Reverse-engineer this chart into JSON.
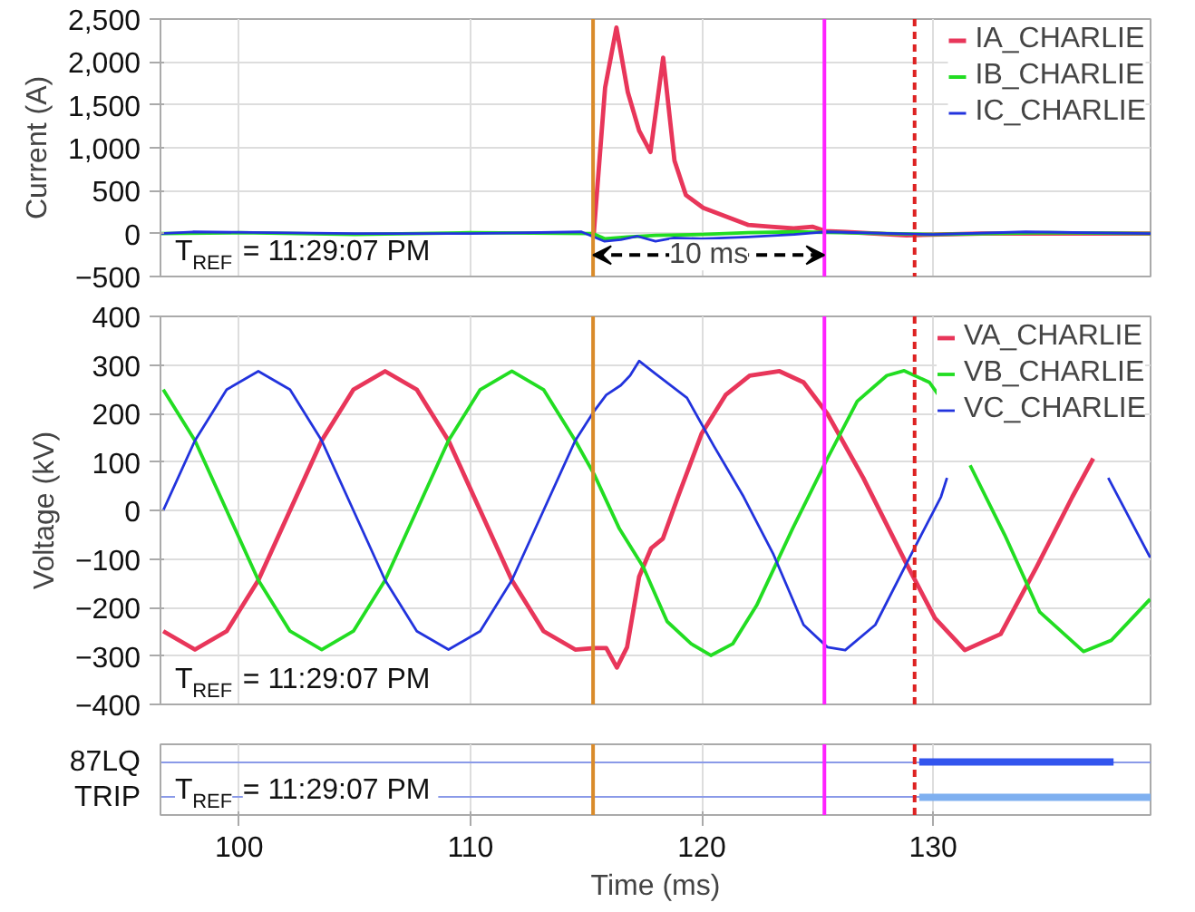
{
  "chart_data": [
    {
      "type": "line",
      "ylabel": "Current (A)",
      "xlim": [
        96.6,
        139.4
      ],
      "xticks": [
        100,
        110,
        120,
        130
      ],
      "ylim": [
        -500,
        2500
      ],
      "yticks": [
        {
          "value": -500,
          "label": "−500"
        },
        0,
        500,
        {
          "value": 1000,
          "label": "1,000"
        },
        {
          "value": 1500,
          "label": "1,500"
        },
        {
          "value": 2000,
          "label": "2,000"
        },
        {
          "value": 2500,
          "label": "2,500"
        }
      ],
      "tick_labels": "y",
      "grid": true,
      "legend": "top right",
      "series": [
        {
          "name": "IA_CHARLIE",
          "color": "#e8365a",
          "x": [
            115.33,
            115.82,
            116.31,
            116.8,
            117.29,
            117.78,
            118.33,
            118.82,
            119.31,
            120.06,
            121.04,
            122.02,
            123.0,
            123.97,
            124.78,
            125.33,
            126.25,
            128.85,
            132.11,
            139.4
          ],
          "values": [
            0,
            1700,
            2400,
            1650,
            1200,
            950,
            2050,
            850,
            450,
            300,
            200,
            100,
            80,
            60,
            80,
            30,
            20,
            -20,
            0,
            0
          ]
        },
        {
          "name": "IB_CHARLIE",
          "color": "#22dd22",
          "x": [
            96.6,
            100,
            105,
            110,
            115.3,
            115.8,
            116.8,
            118,
            120,
            122,
            124,
            126,
            130,
            135,
            139.4
          ],
          "values": [
            0,
            10,
            -10,
            10,
            0,
            -60,
            -40,
            -20,
            -10,
            10,
            20,
            10,
            -10,
            10,
            0
          ]
        },
        {
          "name": "IC_CHARLIE",
          "color": "#2233dd",
          "x": [
            96.6,
            98,
            105,
            110,
            114.8,
            115.8,
            116.5,
            117.2,
            118,
            118.8,
            120,
            122,
            124,
            125.3,
            130,
            134,
            139.4
          ],
          "values": [
            0,
            20,
            0,
            0,
            20,
            -90,
            -70,
            -30,
            -90,
            -50,
            -60,
            -40,
            -10,
            20,
            -10,
            20,
            0
          ]
        }
      ],
      "ref_lines": [
        {
          "axis": "x",
          "value": 115.3,
          "color": "#d98b2b",
          "line_style": "solid"
        },
        {
          "axis": "x",
          "value": 125.3,
          "color": "#ff22ff",
          "line_style": "solid"
        },
        {
          "axis": "x",
          "value": 129.2,
          "color": "#dd2222",
          "line_style": "dashed"
        }
      ],
      "annotations": [
        "T$_{REF}$ = 11:29:07 PM",
        {
          "text": "10 ms",
          "x": 120.3,
          "y": -250
        }
      ]
    },
    {
      "type": "line",
      "ylabel": "Voltage (kV)",
      "xlim": [
        96.6,
        139.4
      ],
      "xticks": [
        100,
        110,
        120,
        130
      ],
      "ylim": [
        -400,
        400
      ],
      "yticks": [
        -400,
        -300,
        -200,
        -100,
        0,
        100,
        200,
        300,
        400
      ],
      "tick_labels": "y",
      "grid": true,
      "legend": "top right",
      "series": [
        {
          "name": "VA_CHARLIE",
          "color": "#e8365a",
          "x": [
            96.72,
            98.09,
            99.46,
            100.83,
            102.2,
            103.57,
            104.94,
            106.31,
            107.68,
            109.05,
            110.42,
            111.79,
            113.16,
            114.53,
            115.35,
            115.87,
            116.33,
            116.77,
            117.29,
            117.81,
            118.32,
            118.97,
            120.0,
            121.03,
            122.07,
            123.36,
            124.4,
            125.43,
            126.98,
            128.78,
            130.08,
            131.37,
            132.92,
            134.47,
            136.02,
            136.92
          ],
          "values": [
            -249,
            -287,
            -249,
            -144,
            0,
            144,
            249,
            287,
            249,
            144,
            0,
            -144,
            -249,
            -287,
            -284,
            -284,
            -324,
            -282,
            -137,
            -78,
            -58,
            28,
            159,
            238,
            278,
            287,
            264,
            199,
            67,
            -104,
            -222,
            -288,
            -255,
            -117,
            28,
            107
          ]
        },
        {
          "name": "VB_CHARLIE",
          "color": "#22dd22",
          "x": [
            96.72,
            98.09,
            99.46,
            100.83,
            102.2,
            103.57,
            104.94,
            106.31,
            107.68,
            109.05,
            110.42,
            111.79,
            113.16,
            114.53,
            115.35,
            116.44,
            117.47,
            118.5,
            119.54,
            120.39,
            121.34,
            122.37,
            123.92,
            125.43,
            126.72,
            128.0,
            128.75,
            129.84,
            130.2,
            130.6,
            131.1,
            131.6,
            133.1,
            134.6,
            136.5,
            137.7,
            139.38
          ],
          "values": [
            249,
            144,
            0,
            -144,
            -249,
            -287,
            -249,
            -144,
            0,
            144,
            249,
            287,
            249,
            144,
            74,
            -38,
            -117,
            -229,
            -275,
            -299,
            -275,
            -196,
            -38,
            107,
            225,
            278,
            288,
            264,
            240,
            null,
            null,
            93,
            -51,
            -209,
            -291,
            -268,
            -183
          ]
        },
        {
          "name": "VC_CHARLIE",
          "color": "#2233dd",
          "x": [
            96.72,
            98.09,
            99.46,
            100.83,
            102.2,
            103.57,
            104.94,
            106.31,
            107.68,
            109.05,
            110.42,
            111.79,
            113.16,
            114.53,
            115.35,
            115.87,
            116.5,
            116.9,
            117.29,
            117.94,
            119.36,
            120.52,
            121.81,
            123.1,
            124.4,
            125.43,
            126.2,
            127.5,
            129.05,
            130.34,
            130.6,
            133.7,
            137.57,
            139.38
          ],
          "values": [
            0,
            144,
            249,
            287,
            249,
            144,
            0,
            -144,
            -249,
            -287,
            -249,
            -144,
            0,
            144,
            205,
            238,
            258,
            278,
            308,
            284,
            232,
            133,
            28,
            -91,
            -236,
            -282,
            -288,
            -236,
            -91,
            28,
            67,
            null,
            67,
            -97
          ]
        }
      ],
      "ref_lines": [
        {
          "axis": "x",
          "value": 115.3,
          "color": "#d98b2b",
          "line_style": "solid"
        },
        {
          "axis": "x",
          "value": 125.3,
          "color": "#ff22ff",
          "line_style": "solid"
        },
        {
          "axis": "x",
          "value": 129.2,
          "color": "#dd2222",
          "line_style": "dashed"
        }
      ],
      "annotations": [
        "T$_{REF}$ = 11:29:07 PM"
      ]
    },
    {
      "type": "bar",
      "orientation": "horizontal",
      "xlabel": "Time (ms)",
      "xlim": [
        96.6,
        139.4
      ],
      "xticks": [
        100,
        110,
        120,
        130
      ],
      "grid": true,
      "categories": [
        "87LQ",
        "TRIP"
      ],
      "base": [
        129.4,
        129.4
      ],
      "values": [
        8.4,
        10.0
      ],
      "colors": [
        "#3355ee",
        "#7fb0f0"
      ],
      "ref_lines": [
        {
          "axis": "x",
          "value": 115.3,
          "color": "#d98b2b",
          "line_style": "solid"
        },
        {
          "axis": "x",
          "value": 125.3,
          "color": "#ff22ff",
          "line_style": "solid"
        },
        {
          "axis": "x",
          "value": 129.2,
          "color": "#dd2222",
          "line_style": "dashed"
        }
      ],
      "annotations": [
        "T$_{REF}$ = 11:29:07 PM"
      ]
    }
  ]
}
